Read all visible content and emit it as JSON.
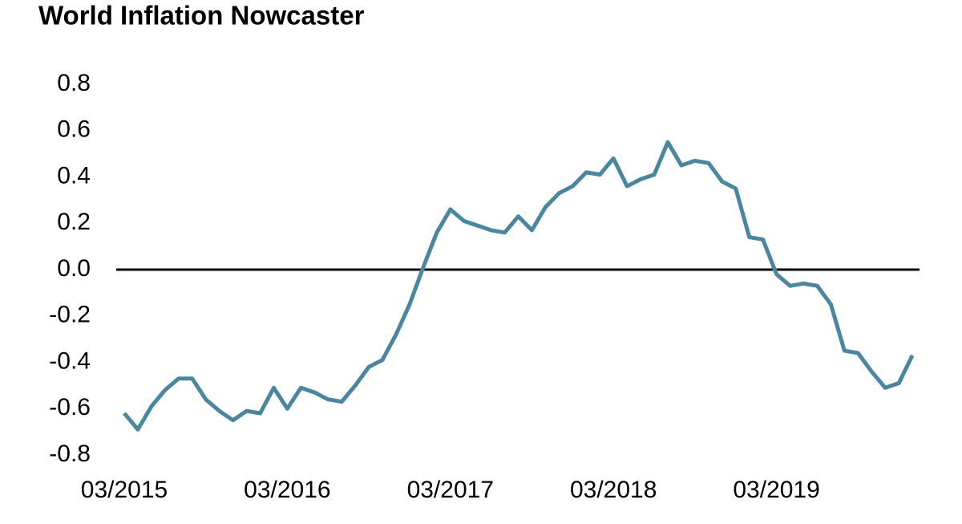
{
  "chart_data": {
    "type": "line",
    "title": "World Inflation Nowcaster",
    "x": [
      "03/2015",
      "04/2015",
      "05/2015",
      "06/2015",
      "07/2015",
      "08/2015",
      "09/2015",
      "10/2015",
      "11/2015",
      "12/2015",
      "01/2016",
      "02/2016",
      "03/2016",
      "04/2016",
      "05/2016",
      "06/2016",
      "07/2016",
      "08/2016",
      "09/2016",
      "10/2016",
      "11/2016",
      "12/2016",
      "01/2017",
      "02/2017",
      "03/2017",
      "04/2017",
      "05/2017",
      "06/2017",
      "07/2017",
      "08/2017",
      "09/2017",
      "10/2017",
      "11/2017",
      "12/2017",
      "01/2018",
      "02/2018",
      "03/2018",
      "04/2018",
      "05/2018",
      "06/2018",
      "07/2018",
      "08/2018",
      "09/2018",
      "10/2018",
      "11/2018",
      "12/2018",
      "01/2019",
      "02/2019",
      "03/2019",
      "04/2019",
      "05/2019",
      "06/2019",
      "07/2019",
      "08/2019",
      "09/2019",
      "10/2019",
      "11/2019",
      "12/2019",
      "01/2020"
    ],
    "series": [
      {
        "color": "#4a86a0",
        "values": [
          -0.62,
          -0.69,
          -0.59,
          -0.52,
          -0.47,
          -0.47,
          -0.56,
          -0.61,
          -0.65,
          -0.61,
          -0.62,
          -0.51,
          -0.6,
          -0.51,
          -0.53,
          -0.56,
          -0.57,
          -0.5,
          -0.42,
          -0.39,
          -0.28,
          -0.15,
          0.01,
          0.16,
          0.26,
          0.21,
          0.19,
          0.17,
          0.16,
          0.23,
          0.17,
          0.27,
          0.33,
          0.36,
          0.42,
          0.41,
          0.48,
          0.36,
          0.39,
          0.41,
          0.55,
          0.45,
          0.47,
          0.46,
          0.38,
          0.35,
          0.14,
          0.13,
          -0.02,
          -0.07,
          -0.06,
          -0.07,
          -0.15,
          -0.35,
          -0.36,
          -0.44,
          -0.51,
          -0.49,
          -0.37
        ]
      }
    ],
    "ylim": [
      -0.8,
      0.8
    ],
    "yticks": [
      0.8,
      0.6,
      0.4,
      0.2,
      {
        "value": 0,
        "label": "0.0"
      },
      -0.2,
      -0.4,
      -0.6,
      -0.8
    ],
    "zero_line": true
  }
}
